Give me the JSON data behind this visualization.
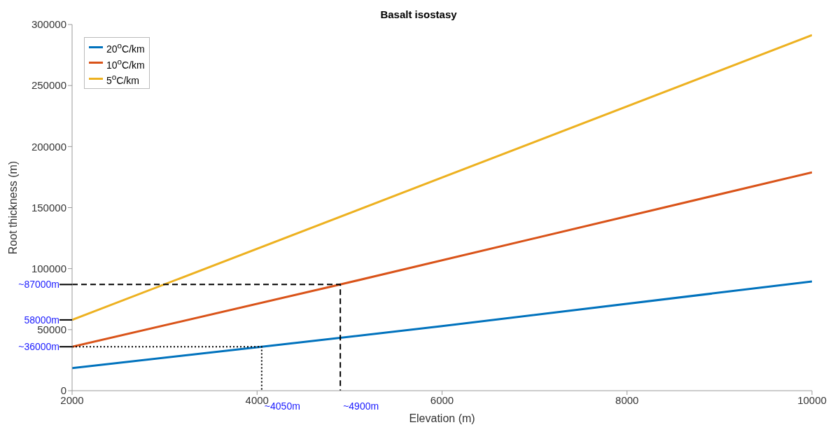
{
  "chart_data": {
    "type": "line",
    "title": "Basalt isostasy",
    "xlabel": "Elevation (m)",
    "ylabel": "Root thickness (m)",
    "x": [
      2000,
      4050,
      6000,
      10000
    ],
    "series": [
      {
        "name": "20$^{o}$C/km",
        "color": "#0072bd",
        "values": [
          18500,
          36000,
          52900,
          89500
        ]
      },
      {
        "name": "10$^{o}$C/km",
        "color": "#d95319",
        "x": [
          2000,
          4900,
          10000
        ],
        "values": [
          36000,
          87000,
          178900
        ]
      },
      {
        "name": "5$^{o}$C/km",
        "color": "#edb120",
        "x": [
          2000,
          10000
        ],
        "values": [
          58000,
          291300
        ]
      },
      {
        "color": "#000000",
        "line_style": "dashed",
        "x": [
          2000,
          4900,
          4900
        ],
        "values": [
          87000,
          87000,
          0
        ]
      },
      {
        "color": "#000000",
        "line_style": "dotted",
        "x": [
          2000,
          4050,
          4050
        ],
        "values": [
          36000,
          36000,
          0
        ]
      }
    ],
    "annotations": [
      {
        "text": "~87000m",
        "x": 2000,
        "y": 87000
      },
      {
        "text": "58000m",
        "x": 2000,
        "y": 58000
      },
      {
        "text": "~36000m",
        "x": 2000,
        "y": 36000
      },
      {
        "text": "~4050m",
        "x": 4050,
        "y": 0
      },
      {
        "text": "~4900m",
        "x": 4900,
        "y": 0
      }
    ],
    "xlim": [
      2000,
      10000
    ],
    "xticks": [
      2000,
      4000,
      6000,
      8000,
      10000
    ],
    "ylim": [
      0,
      300000
    ],
    "yticks": [
      0,
      50000,
      100000,
      150000,
      200000,
      250000,
      300000
    ],
    "legend": "top left",
    "line_style": "solid",
    "marker": "none"
  }
}
